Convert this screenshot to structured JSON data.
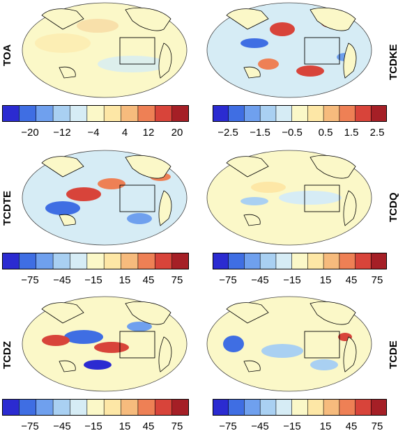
{
  "panels": [
    {
      "label": "TOA",
      "ticks": [
        "−20",
        "−12",
        "−4",
        "4",
        "12",
        "20"
      ]
    },
    {
      "label": "TCDKE",
      "ticks": [
        "−2.5",
        "−1.5",
        "−0.5",
        "0.5",
        "1.5",
        "2.5"
      ]
    },
    {
      "label": "TCDTE",
      "ticks": [
        "−75",
        "−45",
        "−15",
        "15",
        "45",
        "75"
      ]
    },
    {
      "label": "TCDQ",
      "ticks": [
        "−75",
        "−45",
        "−15",
        "15",
        "45",
        "75"
      ]
    },
    {
      "label": "TCDZ",
      "ticks": [
        "−75",
        "−45",
        "−15",
        "15",
        "45",
        "75"
      ]
    },
    {
      "label": "TCDE",
      "ticks": [
        "−75",
        "−45",
        "−15",
        "15",
        "45",
        "75"
      ]
    }
  ],
  "colormap": [
    "#2b2bd1",
    "#3f6ee3",
    "#6fa0ee",
    "#a9d0f2",
    "#d6ecf5",
    "#fbf8c8",
    "#fde7a6",
    "#f6bb7d",
    "#ee8055",
    "#d8443a",
    "#a51f26"
  ]
}
